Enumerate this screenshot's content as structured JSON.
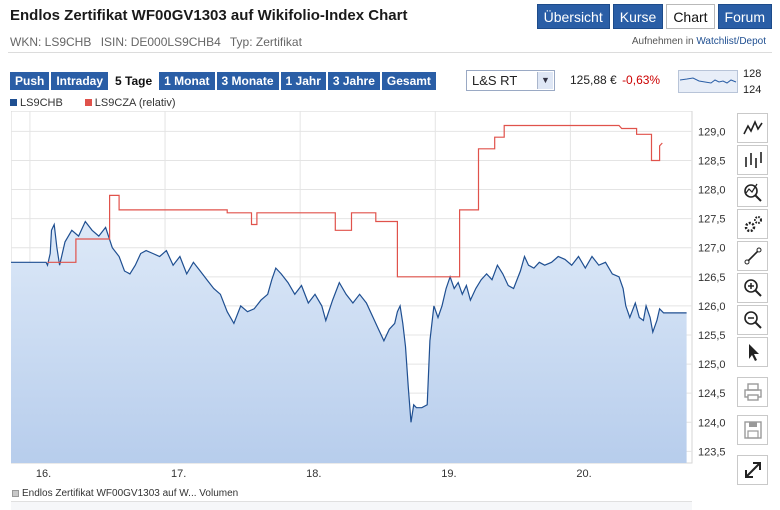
{
  "header": {
    "title": "Endlos Zertifikat WF00GV1303 auf Wikifolio-Index Chart",
    "nav": [
      {
        "label": "Übersicht",
        "active": false
      },
      {
        "label": "Kurse",
        "active": false
      },
      {
        "label": "Chart",
        "active": true
      },
      {
        "label": "Forum",
        "active": false
      }
    ]
  },
  "meta": {
    "wkn": "WKN: LS9CHB",
    "isin": "ISIN: DE000LS9CHB4",
    "typ": "Typ: Zertifikat",
    "watch_prefix": "Aufnehmen in",
    "watch_link": "Watchlist/Depot"
  },
  "ranges": [
    {
      "label": "Push",
      "active": false
    },
    {
      "label": "Intraday",
      "active": false
    },
    {
      "label": "5 Tage",
      "active": true
    },
    {
      "label": "1 Monat",
      "active": false
    },
    {
      "label": "3 Monate",
      "active": false
    },
    {
      "label": "1 Jahr",
      "active": false
    },
    {
      "label": "3 Jahre",
      "active": false
    },
    {
      "label": "Gesamt",
      "active": false
    }
  ],
  "exchange": {
    "selected": "L&S RT"
  },
  "quote": {
    "price": "125,88 €",
    "change": "-0,63%"
  },
  "mini_chart": {
    "high_label": "128",
    "low_label": "124"
  },
  "legend": {
    "series1": "LS9CHB",
    "series2": "LS9CZA (relativ)"
  },
  "volume_label": "Endlos Zertifikat WF00GV1303 auf W... Volumen",
  "colors": {
    "accent": "#2a5ea6",
    "series1": "#1f4f91",
    "series2": "#e0524b",
    "area": "#c9dcf4",
    "negative": "#cc0000"
  },
  "tools": [
    "line-chart-icon",
    "ohlc-chart-icon",
    "indicator-icon",
    "settings-icon",
    "draw-line-icon",
    "zoom-in-icon",
    "zoom-out-icon",
    "pointer-icon",
    "print-icon",
    "save-icon",
    "fullscreen-icon"
  ],
  "chart_data": {
    "type": "line",
    "title": "",
    "xlabel": "",
    "ylabel": "",
    "ylim": [
      123.3,
      129.35
    ],
    "xlim": [
      0,
      5.04
    ],
    "x_ticks": [
      {
        "x": 0.14,
        "label": "16."
      },
      {
        "x": 1.14,
        "label": "17."
      },
      {
        "x": 2.14,
        "label": "18."
      },
      {
        "x": 3.14,
        "label": "19."
      },
      {
        "x": 4.14,
        "label": "20."
      }
    ],
    "y_ticks": [
      "123,5",
      "124,0",
      "124,5",
      "125,0",
      "125,5",
      "126,0",
      "126,5",
      "127,0",
      "127,5",
      "128,0",
      "128,5",
      "129,0"
    ],
    "series": [
      {
        "name": "LS9CHB",
        "style": "area",
        "points": [
          [
            0,
            126.75
          ],
          [
            0.26,
            126.75
          ],
          [
            0.27,
            126.7
          ],
          [
            0.29,
            126.9
          ],
          [
            0.3,
            127.3
          ],
          [
            0.32,
            127.4
          ],
          [
            0.34,
            127.0
          ],
          [
            0.36,
            126.7
          ],
          [
            0.4,
            127.1
          ],
          [
            0.45,
            127.3
          ],
          [
            0.5,
            127.2
          ],
          [
            0.55,
            127.45
          ],
          [
            0.6,
            127.3
          ],
          [
            0.65,
            127.2
          ],
          [
            0.7,
            127.35
          ],
          [
            0.75,
            127.0
          ],
          [
            0.8,
            126.85
          ],
          [
            0.84,
            126.6
          ],
          [
            0.88,
            126.55
          ],
          [
            0.92,
            126.7
          ],
          [
            0.96,
            126.9
          ],
          [
            1.0,
            126.95
          ],
          [
            1.05,
            126.9
          ],
          [
            1.1,
            126.85
          ],
          [
            1.15,
            126.95
          ],
          [
            1.2,
            126.7
          ],
          [
            1.25,
            126.85
          ],
          [
            1.3,
            126.55
          ],
          [
            1.35,
            126.75
          ],
          [
            1.4,
            126.6
          ],
          [
            1.45,
            126.45
          ],
          [
            1.5,
            126.3
          ],
          [
            1.55,
            126.2
          ],
          [
            1.6,
            125.9
          ],
          [
            1.65,
            125.7
          ],
          [
            1.7,
            126.0
          ],
          [
            1.75,
            125.9
          ],
          [
            1.8,
            125.95
          ],
          [
            1.85,
            126.1
          ],
          [
            1.9,
            126.2
          ],
          [
            1.93,
            126.45
          ],
          [
            1.96,
            126.65
          ],
          [
            2.0,
            126.55
          ],
          [
            2.05,
            126.4
          ],
          [
            2.1,
            126.2
          ],
          [
            2.15,
            126.35
          ],
          [
            2.2,
            126.05
          ],
          [
            2.25,
            126.2
          ],
          [
            2.3,
            126.0
          ],
          [
            2.33,
            125.75
          ],
          [
            2.38,
            126.1
          ],
          [
            2.43,
            126.4
          ],
          [
            2.48,
            126.2
          ],
          [
            2.53,
            126.05
          ],
          [
            2.58,
            126.2
          ],
          [
            2.63,
            126.05
          ],
          [
            2.68,
            125.8
          ],
          [
            2.72,
            125.6
          ],
          [
            2.76,
            125.4
          ],
          [
            2.8,
            125.6
          ],
          [
            2.84,
            125.7
          ],
          [
            2.86,
            125.9
          ],
          [
            2.88,
            126.0
          ],
          [
            2.9,
            125.7
          ],
          [
            2.92,
            125.3
          ],
          [
            2.94,
            124.6
          ],
          [
            2.96,
            124.0
          ],
          [
            2.98,
            124.3
          ],
          [
            3.0,
            124.25
          ],
          [
            3.04,
            124.25
          ],
          [
            3.08,
            124.3
          ],
          [
            3.1,
            125.4
          ],
          [
            3.13,
            126.0
          ],
          [
            3.16,
            125.8
          ],
          [
            3.19,
            126.0
          ],
          [
            3.22,
            126.3
          ],
          [
            3.25,
            126.5
          ],
          [
            3.28,
            126.3
          ],
          [
            3.31,
            126.4
          ],
          [
            3.34,
            126.2
          ],
          [
            3.37,
            126.35
          ],
          [
            3.4,
            126.1
          ],
          [
            3.44,
            126.3
          ],
          [
            3.48,
            126.45
          ],
          [
            3.52,
            126.55
          ],
          [
            3.56,
            126.45
          ],
          [
            3.6,
            126.7
          ],
          [
            3.64,
            126.55
          ],
          [
            3.68,
            126.35
          ],
          [
            3.72,
            126.3
          ],
          [
            3.77,
            126.6
          ],
          [
            3.8,
            126.85
          ],
          [
            3.83,
            126.7
          ],
          [
            3.87,
            126.65
          ],
          [
            3.91,
            126.75
          ],
          [
            3.95,
            126.7
          ],
          [
            4.0,
            126.75
          ],
          [
            4.05,
            126.85
          ],
          [
            4.1,
            126.8
          ],
          [
            4.15,
            126.7
          ],
          [
            4.2,
            126.85
          ],
          [
            4.25,
            126.65
          ],
          [
            4.3,
            126.85
          ],
          [
            4.35,
            126.7
          ],
          [
            4.4,
            126.75
          ],
          [
            4.45,
            126.55
          ],
          [
            4.5,
            126.5
          ],
          [
            4.53,
            126.3
          ],
          [
            4.55,
            126.0
          ],
          [
            4.58,
            125.8
          ],
          [
            4.62,
            126.05
          ],
          [
            4.65,
            125.8
          ],
          [
            4.68,
            125.75
          ],
          [
            4.7,
            126.0
          ],
          [
            4.73,
            125.8
          ],
          [
            4.75,
            125.55
          ],
          [
            4.78,
            125.75
          ],
          [
            4.8,
            125.95
          ],
          [
            4.83,
            125.88
          ],
          [
            5.0,
            125.88
          ]
        ]
      },
      {
        "name": "LS9CZA (relativ)",
        "style": "line",
        "points": [
          [
            0.27,
            126.75
          ],
          [
            0.48,
            126.75
          ],
          [
            0.48,
            127.15
          ],
          [
            0.73,
            127.15
          ],
          [
            0.73,
            127.9
          ],
          [
            0.8,
            127.9
          ],
          [
            0.8,
            127.65
          ],
          [
            1.6,
            127.65
          ],
          [
            1.6,
            127.6
          ],
          [
            1.78,
            127.6
          ],
          [
            1.78,
            127.4
          ],
          [
            1.82,
            127.4
          ],
          [
            1.82,
            127.6
          ],
          [
            2.4,
            127.6
          ],
          [
            2.4,
            127.3
          ],
          [
            2.52,
            127.3
          ],
          [
            2.52,
            127.6
          ],
          [
            2.7,
            127.6
          ],
          [
            2.7,
            127.45
          ],
          [
            2.86,
            127.45
          ],
          [
            2.86,
            126.5
          ],
          [
            3.18,
            126.5
          ],
          [
            3.18,
            126.5
          ],
          [
            3.32,
            126.5
          ],
          [
            3.32,
            127.65
          ],
          [
            3.46,
            127.65
          ],
          [
            3.46,
            128.7
          ],
          [
            3.58,
            128.7
          ],
          [
            3.58,
            128.9
          ],
          [
            3.65,
            128.9
          ],
          [
            3.65,
            129.1
          ],
          [
            3.9,
            129.1
          ],
          [
            4.5,
            129.1
          ],
          [
            4.52,
            129.05
          ],
          [
            4.63,
            129.05
          ],
          [
            4.63,
            128.95
          ],
          [
            4.74,
            128.95
          ],
          [
            4.74,
            128.5
          ],
          [
            4.8,
            128.5
          ],
          [
            4.8,
            128.75
          ],
          [
            4.82,
            128.8
          ]
        ]
      }
    ]
  }
}
